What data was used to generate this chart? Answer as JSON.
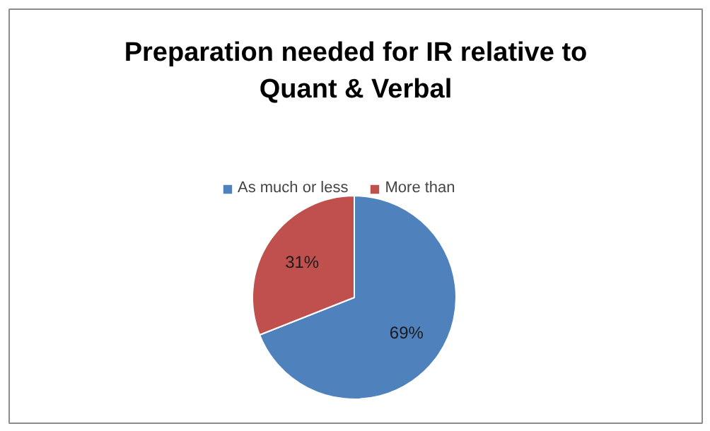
{
  "chart_data": {
    "type": "pie",
    "title": "Preparation needed for IR relative to\nQuant & Verbal",
    "categories": [
      "As much or less",
      "More than"
    ],
    "values": [
      69,
      31
    ],
    "colors": [
      "#4f81bd",
      "#c0504d"
    ],
    "value_labels": [
      "69%",
      "31%"
    ],
    "legend": "top"
  }
}
